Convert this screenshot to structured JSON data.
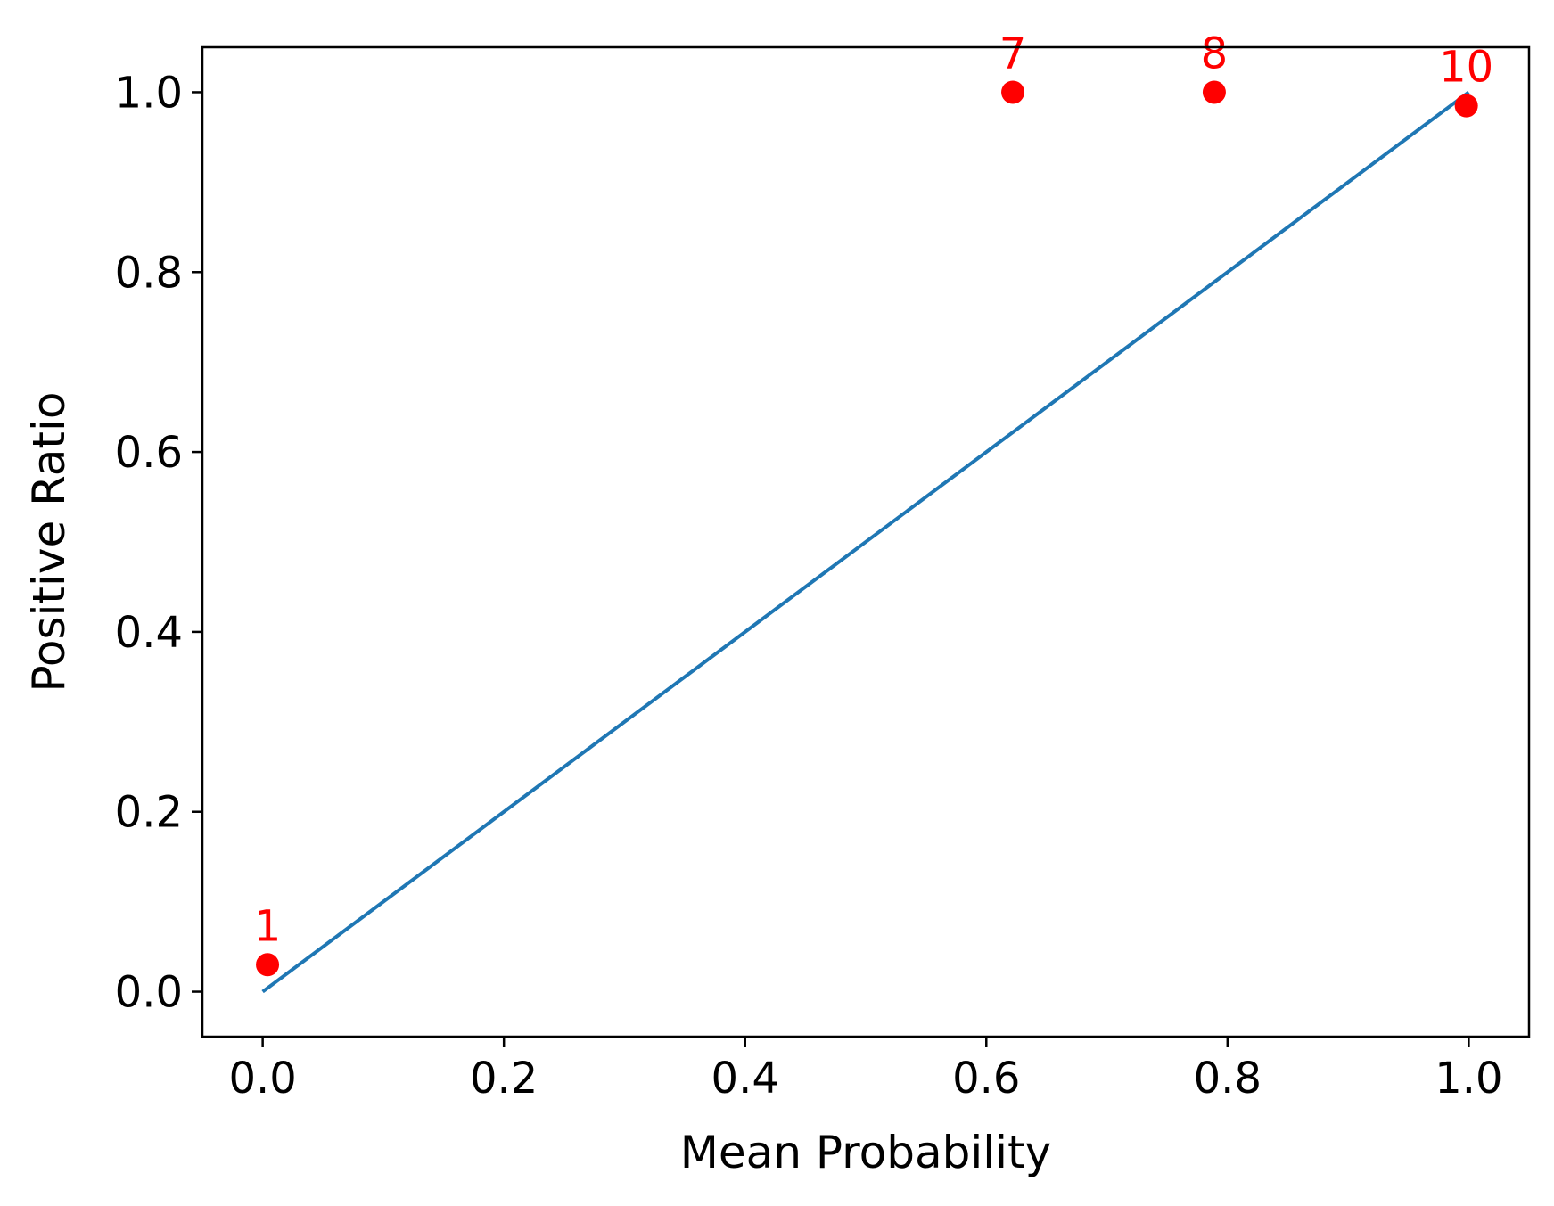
{
  "chart_data": {
    "type": "scatter",
    "title": "",
    "xlabel": "Mean Probability",
    "ylabel": "Positive Ratio",
    "xlim": [
      -0.05,
      1.05
    ],
    "ylim": [
      -0.05,
      1.05
    ],
    "xticks": [
      0.0,
      0.2,
      0.4,
      0.6,
      0.8,
      1.0
    ],
    "yticks": [
      0.0,
      0.2,
      0.4,
      0.6,
      0.8,
      1.0
    ],
    "xtick_labels": [
      "0.0",
      "0.2",
      "0.4",
      "0.6",
      "0.8",
      "1.0"
    ],
    "ytick_labels": [
      "0.0",
      "0.2",
      "0.4",
      "0.6",
      "0.8",
      "1.0"
    ],
    "grid": false,
    "reference_line": {
      "x": [
        0.0,
        1.0
      ],
      "y": [
        0.0,
        1.0
      ],
      "color": "#1f77b4"
    },
    "points": {
      "color": "#ff0000",
      "x": [
        0.004,
        0.622,
        0.789,
        0.998
      ],
      "y": [
        0.03,
        1.0,
        1.0,
        0.985
      ],
      "labels": [
        "1",
        "7",
        "8",
        "10"
      ]
    }
  }
}
